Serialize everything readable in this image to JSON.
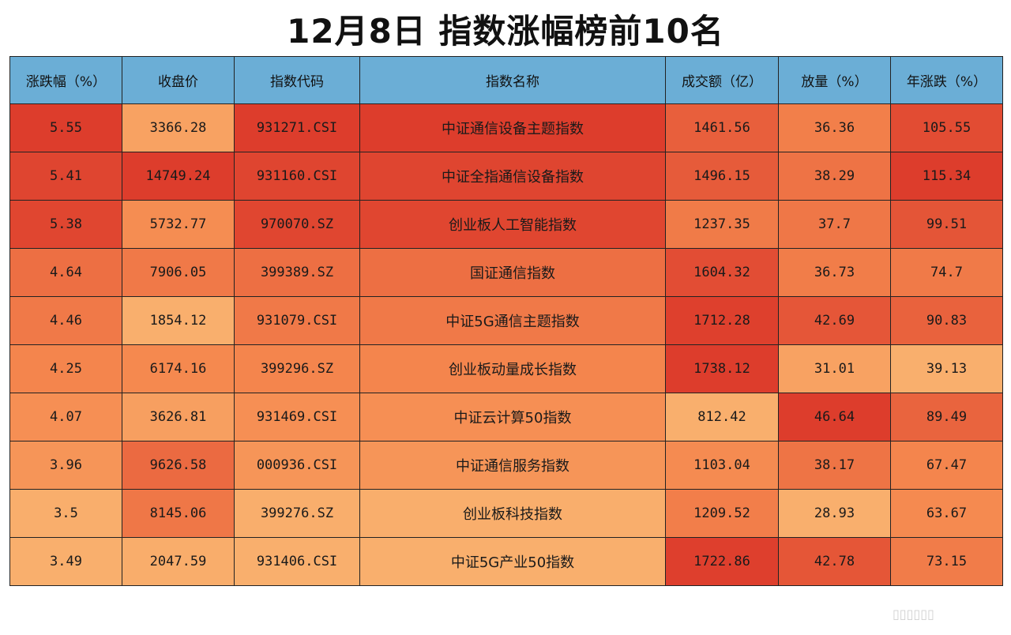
{
  "title": "12月8日 指数涨幅榜前10名",
  "colors": {
    "header_bg": "#6baed6",
    "low": "#fdd58a",
    "mid": "#f5894f",
    "high": "#dd3d2c"
  },
  "chart_data": {
    "type": "table",
    "columns": [
      "涨跌幅（%）",
      "收盘价",
      "指数代码",
      "指数名称",
      "成交额（亿）",
      "放量（%）",
      "年涨跌（%）"
    ],
    "rows": [
      [
        "5.55",
        "3366.28",
        "931271.CSI",
        "中证通信设备主题指数",
        "1461.56",
        "36.36",
        "105.55"
      ],
      [
        "5.41",
        "14749.24",
        "931160.CSI",
        "中证全指通信设备指数",
        "1496.15",
        "38.29",
        "115.34"
      ],
      [
        "5.38",
        "5732.77",
        "970070.SZ",
        "创业板人工智能指数",
        "1237.35",
        "37.7",
        "99.51"
      ],
      [
        "4.64",
        "7906.05",
        "399389.SZ",
        "国证通信指数",
        "1604.32",
        "36.73",
        "74.7"
      ],
      [
        "4.46",
        "1854.12",
        "931079.CSI",
        "中证5G通信主题指数",
        "1712.28",
        "42.69",
        "90.83"
      ],
      [
        "4.25",
        "6174.16",
        "399296.SZ",
        "创业板动量成长指数",
        "1738.12",
        "31.01",
        "39.13"
      ],
      [
        "4.07",
        "3626.81",
        "931469.CSI",
        "中证云计算50指数",
        "812.42",
        "46.64",
        "89.49"
      ],
      [
        "3.96",
        "9626.58",
        "000936.CSI",
        "中证通信服务指数",
        "1103.04",
        "38.17",
        "67.47"
      ],
      [
        "3.5",
        "8145.06",
        "399276.SZ",
        "创业板科技指数",
        "1209.52",
        "28.93",
        "63.67"
      ],
      [
        "3.49",
        "2047.59",
        "931406.CSI",
        "中证5G产业50指数",
        "1722.86",
        "42.78",
        "73.15"
      ]
    ],
    "colormap": "heatmap (yellow-orange-red, per column)"
  }
}
